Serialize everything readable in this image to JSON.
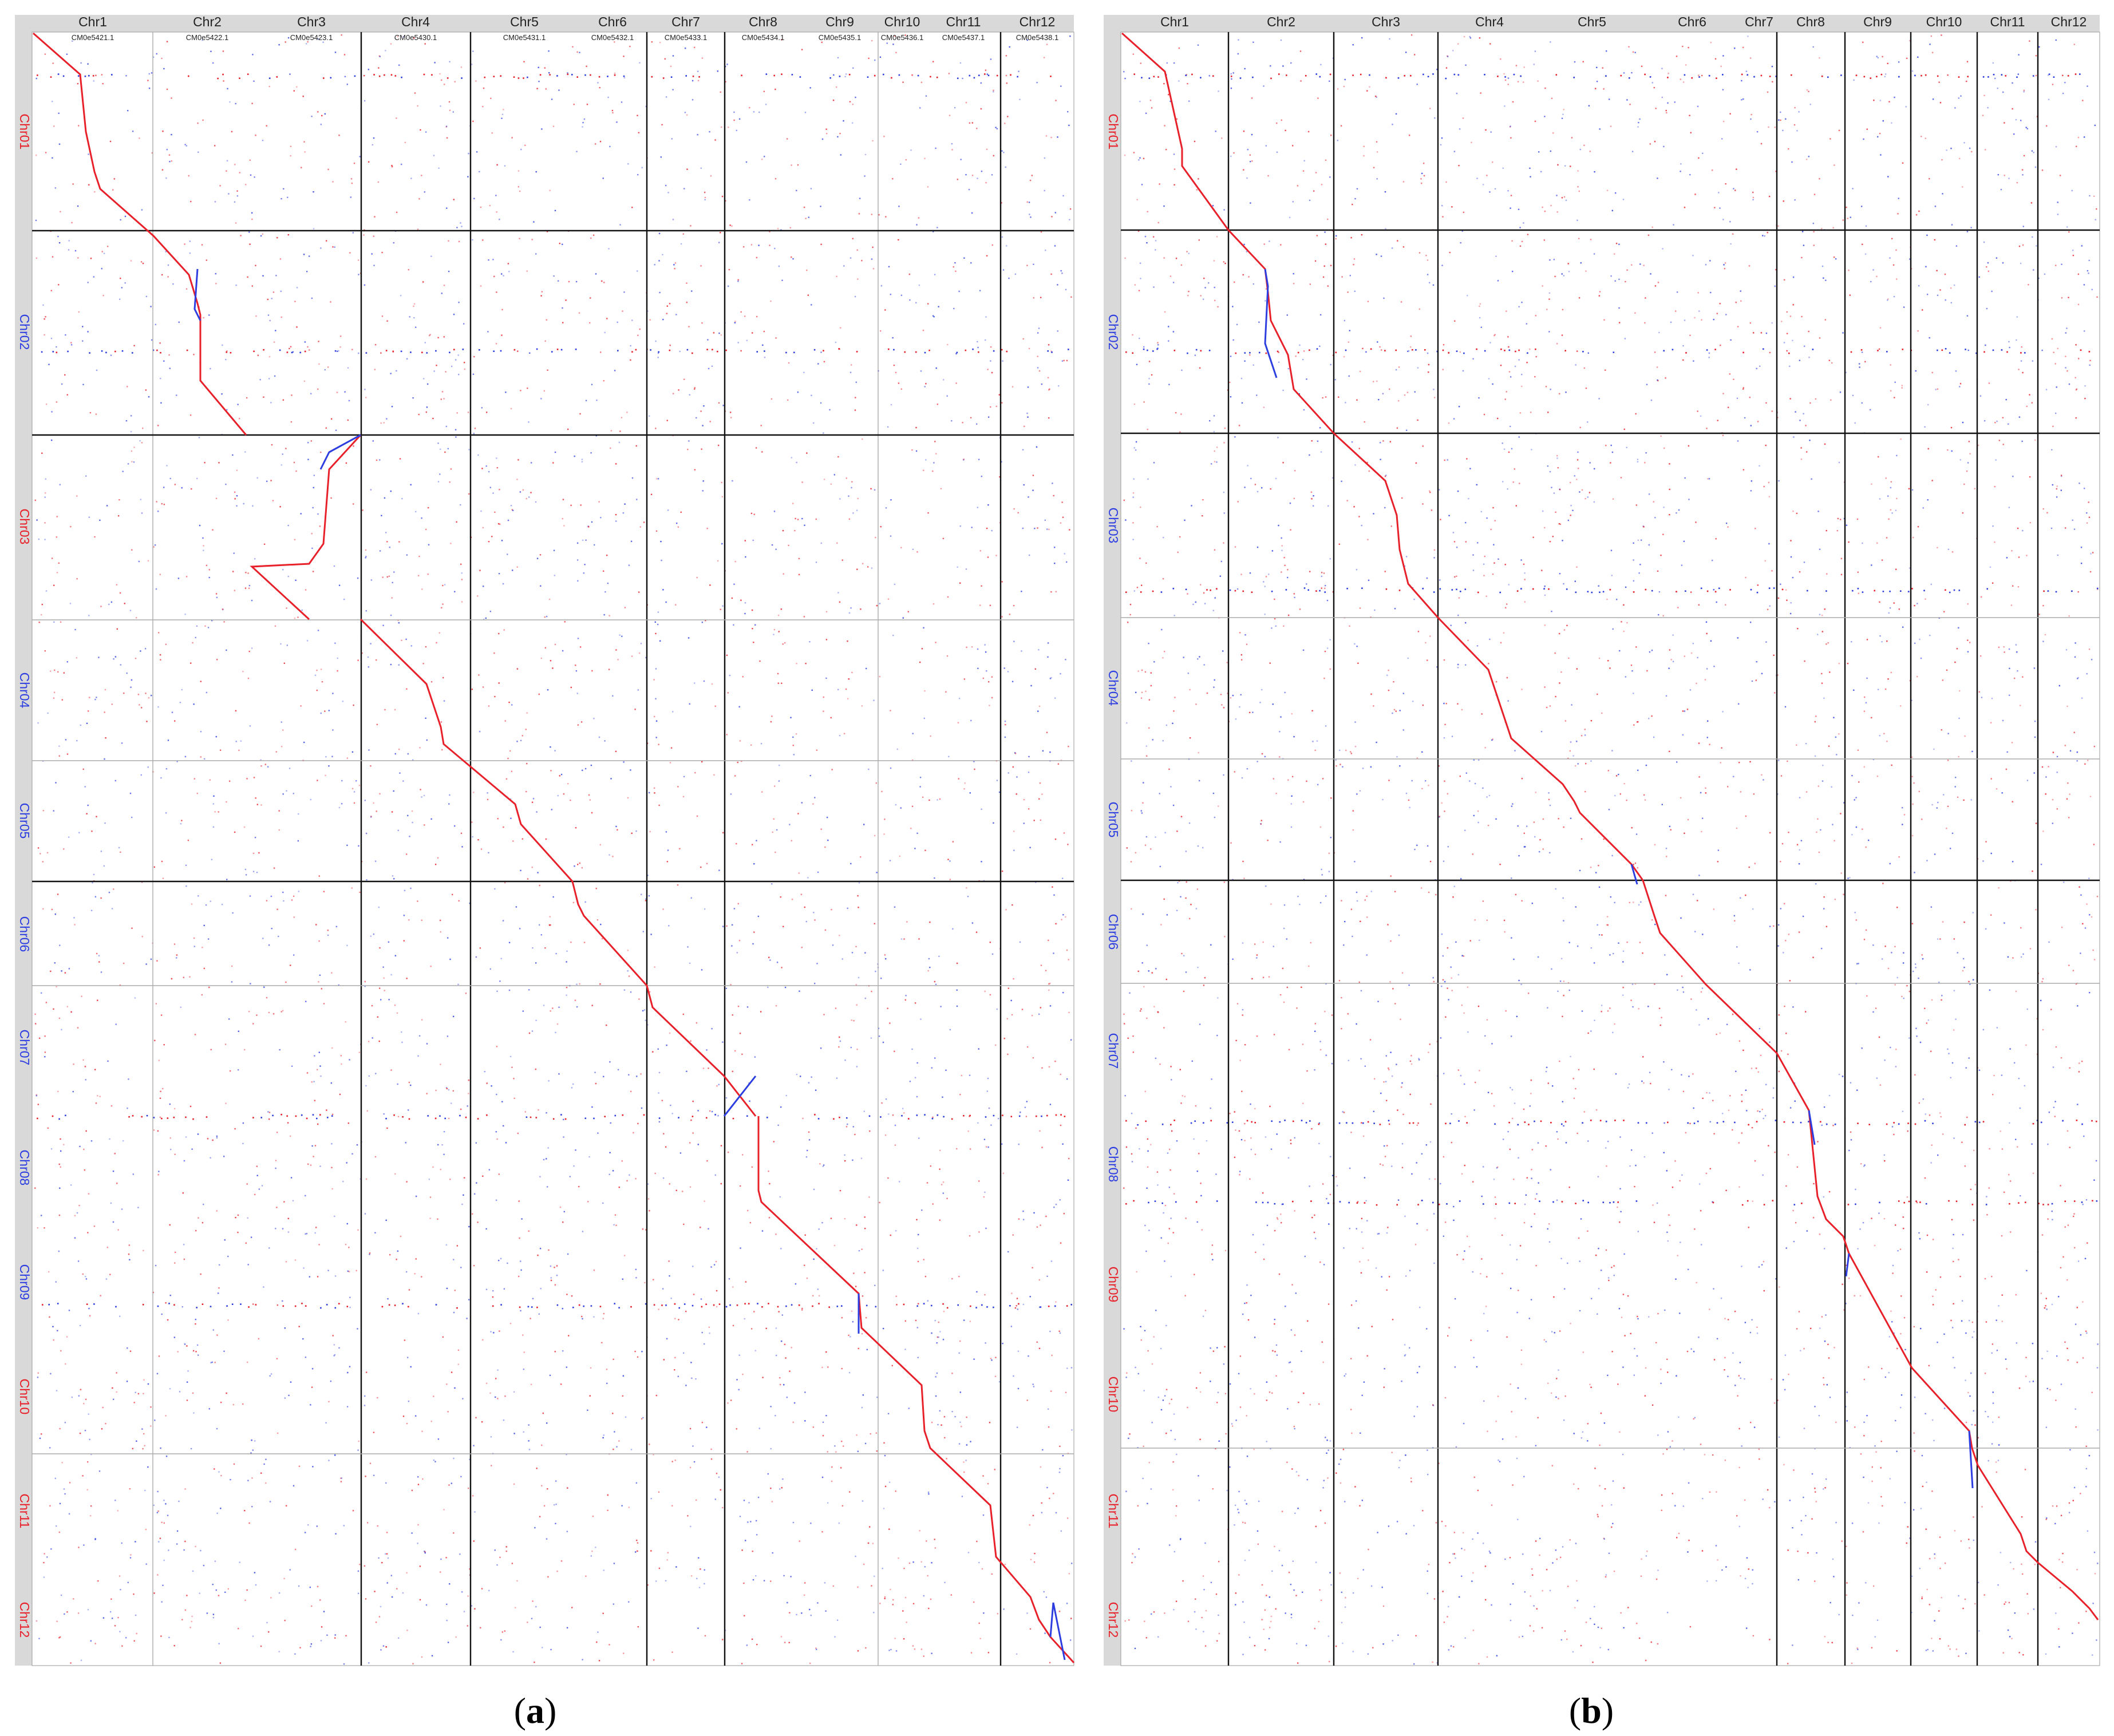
{
  "panels": [
    {
      "id": "a",
      "label_open": "(",
      "label_letter": "a",
      "label_close": ")",
      "columns": [
        {
          "name": "Chr1",
          "sub": "CM0e5421.1"
        },
        {
          "name": "Chr2",
          "sub": "CM0e5422.1"
        },
        {
          "name": "Chr3",
          "sub": "CM0e5423.1"
        },
        {
          "name": "Chr4",
          "sub": "CM0e5430.1"
        },
        {
          "name": "Chr5",
          "sub": "CM0e5431.1"
        },
        {
          "name": "Chr6",
          "sub": "CM0e5432.1"
        },
        {
          "name": "Chr7",
          "sub": "CM0e5433.1"
        },
        {
          "name": "Chr8",
          "sub": "CM0e5434.1"
        },
        {
          "name": "Chr9",
          "sub": "CM0e5435.1"
        },
        {
          "name": "Chr10",
          "sub": "CM0e5436.1"
        },
        {
          "name": "Chr11",
          "sub": "CM0e5437.1"
        },
        {
          "name": "Chr12",
          "sub": "CM0e5438.1"
        }
      ],
      "rows": [
        {
          "name": "Chr01",
          "color": "#e8202a"
        },
        {
          "name": "Chr02",
          "color": "#2d3ee0"
        },
        {
          "name": "Chr03",
          "color": "#e8202a"
        },
        {
          "name": "Chr04",
          "color": "#2d3ee0"
        },
        {
          "name": "Chr05",
          "color": "#2d3ee0"
        },
        {
          "name": "Chr06",
          "color": "#2d3ee0"
        },
        {
          "name": "Chr07",
          "color": "#2d3ee0"
        },
        {
          "name": "Chr08",
          "color": "#2d3ee0"
        },
        {
          "name": "Chr09",
          "color": "#2d3ee0"
        },
        {
          "name": "Chr10",
          "color": "#e8202a"
        },
        {
          "name": "Chr11",
          "color": "#e8202a"
        },
        {
          "name": "Chr12",
          "color": "#e8202a"
        }
      ]
    },
    {
      "id": "b",
      "label_open": "(",
      "label_letter": "b",
      "label_close": ")",
      "columns": [
        {
          "name": "Chr1"
        },
        {
          "name": "Chr2"
        },
        {
          "name": "Chr3"
        },
        {
          "name": "Chr4"
        },
        {
          "name": "Chr5"
        },
        {
          "name": "Chr6"
        },
        {
          "name": "Chr7"
        },
        {
          "name": "Chr8"
        },
        {
          "name": "Chr9"
        },
        {
          "name": "Chr10"
        },
        {
          "name": "Chr11"
        },
        {
          "name": "Chr12"
        }
      ],
      "rows": [
        {
          "name": "Chr01",
          "color": "#e8202a"
        },
        {
          "name": "Chr02",
          "color": "#2d3ee0"
        },
        {
          "name": "Chr03",
          "color": "#2d3ee0"
        },
        {
          "name": "Chr04",
          "color": "#2d3ee0"
        },
        {
          "name": "Chr05",
          "color": "#2d3ee0"
        },
        {
          "name": "Chr06",
          "color": "#2d3ee0"
        },
        {
          "name": "Chr07",
          "color": "#2d3ee0"
        },
        {
          "name": "Chr08",
          "color": "#2d3ee0"
        },
        {
          "name": "Chr09",
          "color": "#e8202a"
        },
        {
          "name": "Chr10",
          "color": "#e8202a"
        },
        {
          "name": "Chr11",
          "color": "#e8202a"
        },
        {
          "name": "Chr12",
          "color": "#e8202a"
        }
      ]
    }
  ],
  "colors": {
    "forward_match": "#e8202a",
    "reverse_match": "#2d3ee0",
    "header_bar": "#d9d9d9",
    "grid_major": "#111111",
    "grid_minor": "#aaaaaa"
  },
  "chart_data": [
    {
      "type": "scatter",
      "panel": "a",
      "title": "",
      "xlabel": "",
      "ylabel": "",
      "x_categories": [
        "Chr1",
        "Chr2",
        "Chr3",
        "Chr4",
        "Chr5",
        "Chr6",
        "Chr7",
        "Chr8",
        "Chr9",
        "Chr10",
        "Chr11",
        "Chr12"
      ],
      "y_categories": [
        "Chr01",
        "Chr02",
        "Chr03",
        "Chr04",
        "Chr05",
        "Chr06",
        "Chr07",
        "Chr08",
        "Chr09",
        "Chr10",
        "Chr11",
        "Chr12"
      ],
      "x_chromosome_relative_lengths": [
        0.2,
        0.18,
        0.2,
        0.1,
        0.17,
        0.17,
        0.075,
        0.135,
        0.13,
        0.07,
        0.13,
        0.07
      ],
      "y_chromosome_relative_lengths": [
        0.125,
        0.125,
        0.112,
        0.087,
        0.075,
        0.063,
        0.083,
        0.087,
        0.077,
        0.077,
        0.077,
        0.077
      ],
      "forward_color": "#e8202a",
      "reverse_color": "#2d3ee0"
    },
    {
      "type": "scatter",
      "panel": "b",
      "title": "",
      "xlabel": "",
      "ylabel": "",
      "x_categories": [
        "Chr1",
        "Chr2",
        "Chr3",
        "Chr4",
        "Chr5",
        "Chr6",
        "Chr7",
        "Chr8",
        "Chr9",
        "Chr10",
        "Chr11",
        "Chr12"
      ],
      "y_categories": [
        "Chr01",
        "Chr02",
        "Chr03",
        "Chr04",
        "Chr05",
        "Chr06",
        "Chr07",
        "Chr08",
        "Chr09",
        "Chr10",
        "Chr11",
        "Chr12"
      ],
      "x_chromosome_relative_lengths": [
        0.117,
        0.106,
        0.106,
        0.064,
        0.064,
        0.064,
        0.064,
        0.067,
        0.067,
        0.067,
        0.067,
        0.067
      ],
      "y_chromosome_relative_lengths": [
        0.124,
        0.125,
        0.112,
        0.086,
        0.074,
        0.064,
        0.084,
        0.086,
        0.076,
        0.076,
        0.078,
        0.081
      ],
      "forward_color": "#e8202a",
      "reverse_color": "#2d3ee0"
    }
  ]
}
